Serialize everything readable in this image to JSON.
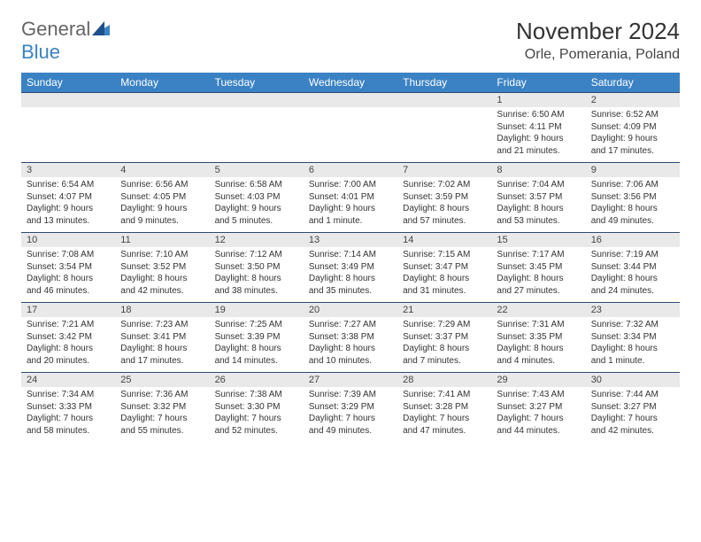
{
  "brand": {
    "word1": "General",
    "word2": "Blue"
  },
  "header": {
    "month_title": "November 2024",
    "location": "Orle, Pomerania, Poland"
  },
  "colors": {
    "header_bg": "#3b82c4",
    "header_text": "#ffffff",
    "daynum_bg": "#e9e9e9",
    "rule": "#2b4a6f",
    "brand_blue": "#3b82c4",
    "brand_gray": "#666666"
  },
  "day_names": [
    "Sunday",
    "Monday",
    "Tuesday",
    "Wednesday",
    "Thursday",
    "Friday",
    "Saturday"
  ],
  "weeks": [
    [
      {
        "n": "",
        "sr": "",
        "ss": "",
        "dl": ""
      },
      {
        "n": "",
        "sr": "",
        "ss": "",
        "dl": ""
      },
      {
        "n": "",
        "sr": "",
        "ss": "",
        "dl": ""
      },
      {
        "n": "",
        "sr": "",
        "ss": "",
        "dl": ""
      },
      {
        "n": "",
        "sr": "",
        "ss": "",
        "dl": ""
      },
      {
        "n": "1",
        "sr": "Sunrise: 6:50 AM",
        "ss": "Sunset: 4:11 PM",
        "dl": "Daylight: 9 hours and 21 minutes."
      },
      {
        "n": "2",
        "sr": "Sunrise: 6:52 AM",
        "ss": "Sunset: 4:09 PM",
        "dl": "Daylight: 9 hours and 17 minutes."
      }
    ],
    [
      {
        "n": "3",
        "sr": "Sunrise: 6:54 AM",
        "ss": "Sunset: 4:07 PM",
        "dl": "Daylight: 9 hours and 13 minutes."
      },
      {
        "n": "4",
        "sr": "Sunrise: 6:56 AM",
        "ss": "Sunset: 4:05 PM",
        "dl": "Daylight: 9 hours and 9 minutes."
      },
      {
        "n": "5",
        "sr": "Sunrise: 6:58 AM",
        "ss": "Sunset: 4:03 PM",
        "dl": "Daylight: 9 hours and 5 minutes."
      },
      {
        "n": "6",
        "sr": "Sunrise: 7:00 AM",
        "ss": "Sunset: 4:01 PM",
        "dl": "Daylight: 9 hours and 1 minute."
      },
      {
        "n": "7",
        "sr": "Sunrise: 7:02 AM",
        "ss": "Sunset: 3:59 PM",
        "dl": "Daylight: 8 hours and 57 minutes."
      },
      {
        "n": "8",
        "sr": "Sunrise: 7:04 AM",
        "ss": "Sunset: 3:57 PM",
        "dl": "Daylight: 8 hours and 53 minutes."
      },
      {
        "n": "9",
        "sr": "Sunrise: 7:06 AM",
        "ss": "Sunset: 3:56 PM",
        "dl": "Daylight: 8 hours and 49 minutes."
      }
    ],
    [
      {
        "n": "10",
        "sr": "Sunrise: 7:08 AM",
        "ss": "Sunset: 3:54 PM",
        "dl": "Daylight: 8 hours and 46 minutes."
      },
      {
        "n": "11",
        "sr": "Sunrise: 7:10 AM",
        "ss": "Sunset: 3:52 PM",
        "dl": "Daylight: 8 hours and 42 minutes."
      },
      {
        "n": "12",
        "sr": "Sunrise: 7:12 AM",
        "ss": "Sunset: 3:50 PM",
        "dl": "Daylight: 8 hours and 38 minutes."
      },
      {
        "n": "13",
        "sr": "Sunrise: 7:14 AM",
        "ss": "Sunset: 3:49 PM",
        "dl": "Daylight: 8 hours and 35 minutes."
      },
      {
        "n": "14",
        "sr": "Sunrise: 7:15 AM",
        "ss": "Sunset: 3:47 PM",
        "dl": "Daylight: 8 hours and 31 minutes."
      },
      {
        "n": "15",
        "sr": "Sunrise: 7:17 AM",
        "ss": "Sunset: 3:45 PM",
        "dl": "Daylight: 8 hours and 27 minutes."
      },
      {
        "n": "16",
        "sr": "Sunrise: 7:19 AM",
        "ss": "Sunset: 3:44 PM",
        "dl": "Daylight: 8 hours and 24 minutes."
      }
    ],
    [
      {
        "n": "17",
        "sr": "Sunrise: 7:21 AM",
        "ss": "Sunset: 3:42 PM",
        "dl": "Daylight: 8 hours and 20 minutes."
      },
      {
        "n": "18",
        "sr": "Sunrise: 7:23 AM",
        "ss": "Sunset: 3:41 PM",
        "dl": "Daylight: 8 hours and 17 minutes."
      },
      {
        "n": "19",
        "sr": "Sunrise: 7:25 AM",
        "ss": "Sunset: 3:39 PM",
        "dl": "Daylight: 8 hours and 14 minutes."
      },
      {
        "n": "20",
        "sr": "Sunrise: 7:27 AM",
        "ss": "Sunset: 3:38 PM",
        "dl": "Daylight: 8 hours and 10 minutes."
      },
      {
        "n": "21",
        "sr": "Sunrise: 7:29 AM",
        "ss": "Sunset: 3:37 PM",
        "dl": "Daylight: 8 hours and 7 minutes."
      },
      {
        "n": "22",
        "sr": "Sunrise: 7:31 AM",
        "ss": "Sunset: 3:35 PM",
        "dl": "Daylight: 8 hours and 4 minutes."
      },
      {
        "n": "23",
        "sr": "Sunrise: 7:32 AM",
        "ss": "Sunset: 3:34 PM",
        "dl": "Daylight: 8 hours and 1 minute."
      }
    ],
    [
      {
        "n": "24",
        "sr": "Sunrise: 7:34 AM",
        "ss": "Sunset: 3:33 PM",
        "dl": "Daylight: 7 hours and 58 minutes."
      },
      {
        "n": "25",
        "sr": "Sunrise: 7:36 AM",
        "ss": "Sunset: 3:32 PM",
        "dl": "Daylight: 7 hours and 55 minutes."
      },
      {
        "n": "26",
        "sr": "Sunrise: 7:38 AM",
        "ss": "Sunset: 3:30 PM",
        "dl": "Daylight: 7 hours and 52 minutes."
      },
      {
        "n": "27",
        "sr": "Sunrise: 7:39 AM",
        "ss": "Sunset: 3:29 PM",
        "dl": "Daylight: 7 hours and 49 minutes."
      },
      {
        "n": "28",
        "sr": "Sunrise: 7:41 AM",
        "ss": "Sunset: 3:28 PM",
        "dl": "Daylight: 7 hours and 47 minutes."
      },
      {
        "n": "29",
        "sr": "Sunrise: 7:43 AM",
        "ss": "Sunset: 3:27 PM",
        "dl": "Daylight: 7 hours and 44 minutes."
      },
      {
        "n": "30",
        "sr": "Sunrise: 7:44 AM",
        "ss": "Sunset: 3:27 PM",
        "dl": "Daylight: 7 hours and 42 minutes."
      }
    ]
  ]
}
